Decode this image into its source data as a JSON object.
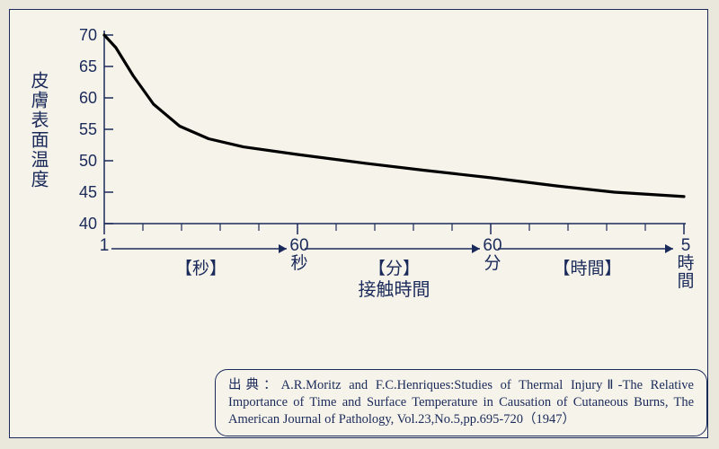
{
  "chart": {
    "type": "line",
    "background_color": "#f6f3ea",
    "border_color": "#1a2a5a",
    "line_color": "#000000",
    "line_width": 3.2,
    "y_axis": {
      "label": "皮膚表面温度",
      "min": 40,
      "max": 70,
      "tick_step": 5,
      "ticks": [
        40,
        45,
        50,
        55,
        60,
        65,
        70
      ],
      "tick_fontsize": 18,
      "label_fontsize": 20,
      "axis_color": "#1a2a5a"
    },
    "x_axis": {
      "title": "接触時間",
      "title_fontsize": 20,
      "segments": [
        {
          "start_label": "1",
          "end_label": "60\n秒",
          "bracket_label": "【秒】"
        },
        {
          "start_label": "",
          "end_label": "60\n分",
          "bracket_label": "【分】"
        },
        {
          "start_label": "",
          "end_label": "5\n時\n間",
          "bracket_label": "【時間】"
        }
      ],
      "minor_ticks_per_segment": 5,
      "axis_color": "#1a2a5a"
    },
    "curve_points": [
      {
        "x": 0.0,
        "y": 70.0
      },
      {
        "x": 0.02,
        "y": 68.0
      },
      {
        "x": 0.05,
        "y": 63.5
      },
      {
        "x": 0.085,
        "y": 59.0
      },
      {
        "x": 0.13,
        "y": 55.5
      },
      {
        "x": 0.18,
        "y": 53.5
      },
      {
        "x": 0.24,
        "y": 52.2
      },
      {
        "x": 0.333,
        "y": 51.0
      },
      {
        "x": 0.45,
        "y": 49.6
      },
      {
        "x": 0.55,
        "y": 48.5
      },
      {
        "x": 0.666,
        "y": 47.3
      },
      {
        "x": 0.78,
        "y": 46.0
      },
      {
        "x": 0.88,
        "y": 45.0
      },
      {
        "x": 1.0,
        "y": 44.3
      }
    ]
  },
  "citation": {
    "prefix": "出典：",
    "text": "A.R.Moritz and F.C.Henriques:Studies of Thermal InjuryⅡ-The Relative Importance of Time and Surface Temperature in Causation of Cutaneous Burns, The American Journal of Pathology, Vol.23,No.5,pp.695-720（1947）"
  },
  "colors": {
    "page_bg": "#eae8dc",
    "panel_bg": "#f6f3ea",
    "ink": "#1a2a5a"
  }
}
